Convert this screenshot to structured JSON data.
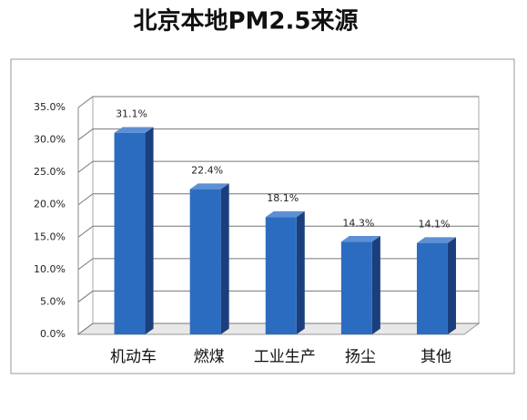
{
  "chart_data": {
    "type": "bar3d",
    "title": "北京本地PM2.5来源",
    "categories": [
      "机动车",
      "燃煤",
      "工业生产",
      "扬尘",
      "其他"
    ],
    "values": [
      31.1,
      22.4,
      18.1,
      14.3,
      14.1
    ],
    "value_labels": [
      "31.1%",
      "22.4%",
      "18.1%",
      "14.3%",
      "14.1%"
    ],
    "color": "#2c6cc0",
    "ylim": [
      0,
      35
    ],
    "yticks": [
      {
        "value": 0,
        "label": "0.0%"
      },
      {
        "value": 5,
        "label": "5.0%"
      },
      {
        "value": 10,
        "label": "10.0%"
      },
      {
        "value": 15,
        "label": "15.0%"
      },
      {
        "value": 20,
        "label": "20.0%"
      },
      {
        "value": 25,
        "label": "25.0%"
      },
      {
        "value": 30,
        "label": "30.0%"
      },
      {
        "value": 35,
        "label": "35.0%"
      }
    ],
    "grid": true
  }
}
